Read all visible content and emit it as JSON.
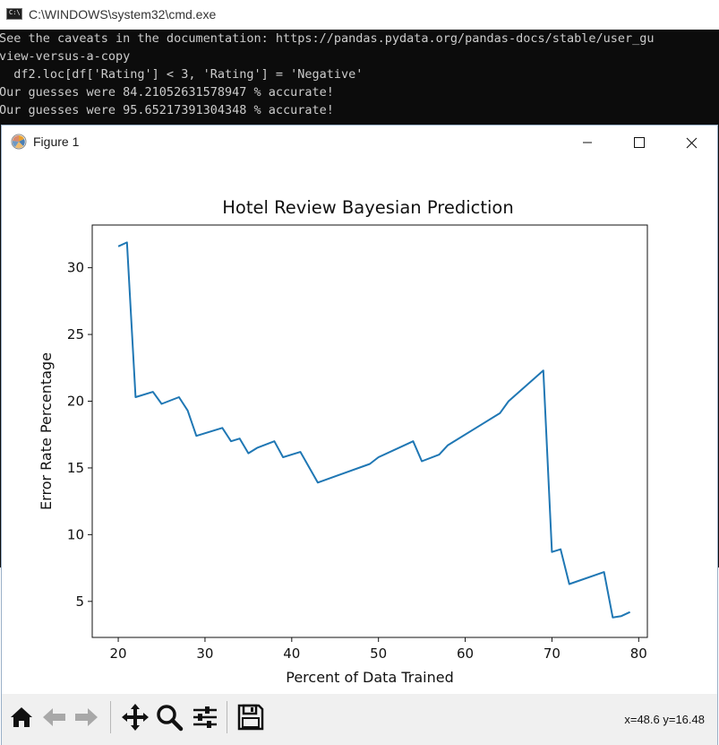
{
  "cmd": {
    "title": "C:\\WINDOWS\\system32\\cmd.exe",
    "icon_text": "C:\\",
    "lines": [
      "See the caveats in the documentation: https://pandas.pydata.org/pandas-docs/stable/user_gu",
      "view-versus-a-copy",
      "  df2.loc[df['Rating'] < 3, 'Rating'] = 'Negative'",
      "Our guesses were 84.21052631578947 % accurate!",
      "Our guesses were 95.65217391304348 % accurate!"
    ]
  },
  "figure": {
    "title": "Figure 1",
    "coord_readout": "x=48.6 y=16.48",
    "toolbar_icons": [
      "home-icon",
      "back-arrow-icon",
      "forward-arrow-icon",
      "pan-icon",
      "zoom-icon",
      "subplots-icon",
      "save-icon"
    ]
  },
  "chart_data": {
    "type": "line",
    "title": "Hotel Review Bayesian Prediction",
    "xlabel": "Percent of Data Trained",
    "ylabel": "Error Rate Percentage",
    "xlim": [
      17,
      81
    ],
    "ylim": [
      2.3,
      33.2
    ],
    "xticks": [
      20,
      30,
      40,
      50,
      60,
      70,
      80
    ],
    "yticks": [
      5,
      10,
      15,
      20,
      25,
      30
    ],
    "grid": false,
    "line_color": "#1f77b4",
    "series": [
      {
        "x": [
          20,
          21,
          22,
          24,
          25,
          27,
          28,
          29,
          32,
          33,
          34,
          35,
          36,
          38,
          39,
          41,
          43,
          49,
          50,
          54,
          55,
          57,
          58,
          62,
          64,
          65,
          69,
          70,
          71,
          72,
          76,
          77,
          78,
          79
        ],
        "y": [
          31.6,
          31.9,
          20.3,
          20.7,
          19.8,
          20.3,
          19.3,
          17.4,
          18.0,
          17.0,
          17.2,
          16.1,
          16.5,
          17.0,
          15.8,
          16.2,
          13.9,
          15.3,
          15.8,
          17.0,
          15.5,
          16.0,
          16.7,
          18.3,
          19.1,
          20.0,
          22.3,
          8.7,
          8.9,
          6.3,
          7.2,
          3.8,
          3.9,
          4.2
        ]
      }
    ]
  }
}
